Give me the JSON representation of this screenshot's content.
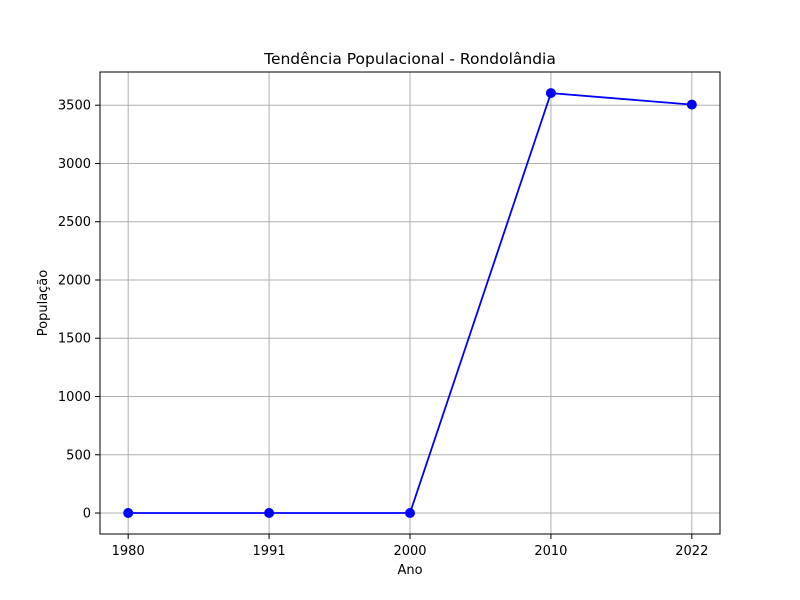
{
  "chart_data": {
    "type": "line",
    "title": "Tendência Populacional - Rondolândia",
    "xlabel": "Ano",
    "ylabel": "População",
    "categories": [
      "1980",
      "1991",
      "2000",
      "2010",
      "2022"
    ],
    "values": [
      0,
      0,
      0,
      3604,
      3505
    ],
    "ylim": [
      -180,
      3785
    ],
    "yticks": [
      0,
      500,
      1000,
      1500,
      2000,
      2500,
      3000,
      3500
    ],
    "grid": true,
    "line_color": "#0000ff",
    "marker": "circle",
    "legend": "none"
  }
}
